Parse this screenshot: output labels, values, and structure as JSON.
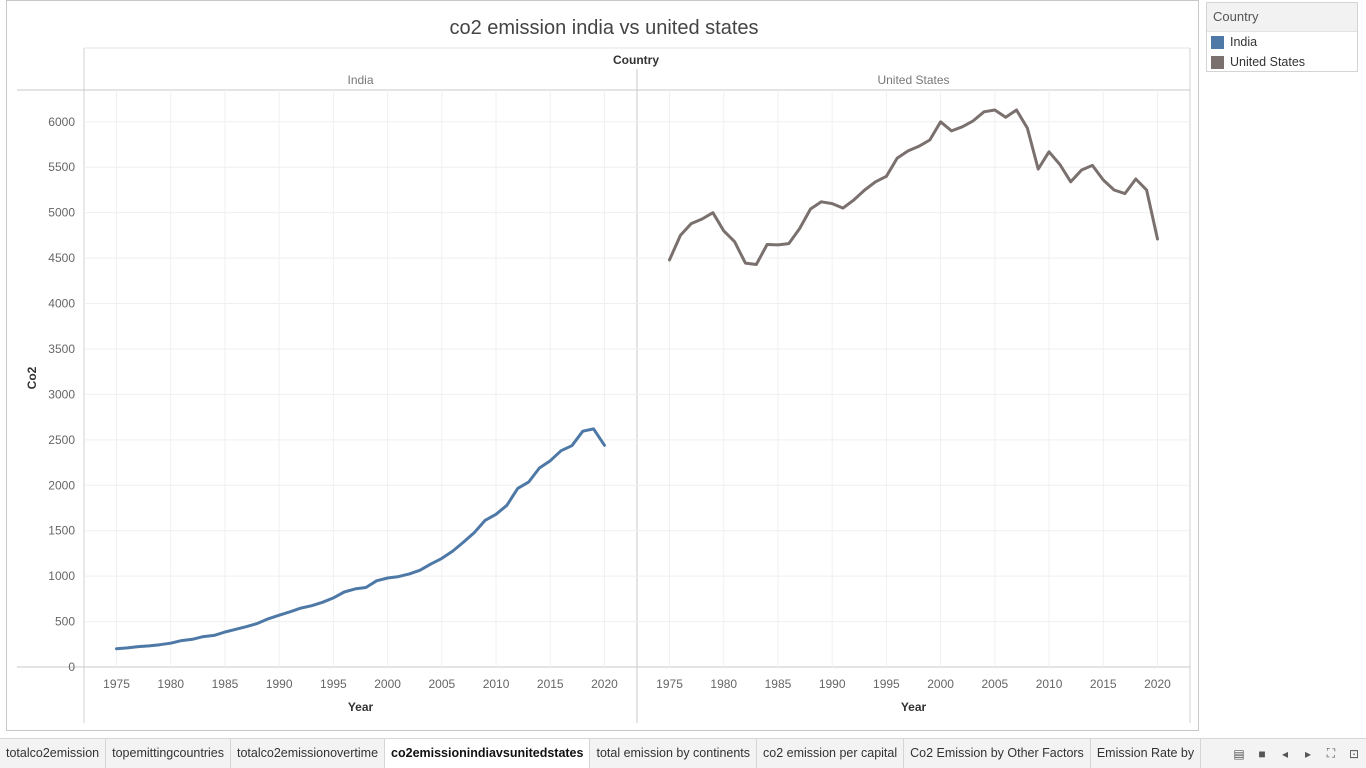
{
  "chart_data": {
    "type": "line",
    "title": "co2 emission india vs united states",
    "column_header": "Country",
    "ylabel": "Co2",
    "xlabel": "Year",
    "ylim": [
      0,
      6350
    ],
    "xlim": [
      1972,
      2023
    ],
    "y_ticks": [
      0,
      500,
      1000,
      1500,
      2000,
      2500,
      3000,
      3500,
      4000,
      4500,
      5000,
      5500,
      6000
    ],
    "x_ticks": [
      1975,
      1980,
      1985,
      1990,
      1995,
      2000,
      2005,
      2010,
      2015,
      2020
    ],
    "grid": true,
    "x": [
      1975,
      1976,
      1977,
      1978,
      1979,
      1980,
      1981,
      1982,
      1983,
      1984,
      1985,
      1986,
      1987,
      1988,
      1989,
      1990,
      1991,
      1992,
      1993,
      1994,
      1995,
      1996,
      1997,
      1998,
      1999,
      2000,
      2001,
      2002,
      2003,
      2004,
      2005,
      2006,
      2007,
      2008,
      2009,
      2010,
      2011,
      2012,
      2013,
      2014,
      2015,
      2016,
      2017,
      2018,
      2019,
      2020
    ],
    "panels": [
      {
        "name": "India",
        "color": "#4e79a7",
        "values": [
          200,
          210,
          225,
          232,
          245,
          262,
          290,
          305,
          335,
          348,
          385,
          415,
          445,
          480,
          530,
          570,
          608,
          648,
          675,
          712,
          760,
          825,
          860,
          875,
          950,
          980,
          995,
          1025,
          1065,
          1135,
          1195,
          1275,
          1375,
          1480,
          1615,
          1680,
          1780,
          1965,
          2035,
          2190,
          2270,
          2380,
          2435,
          2595,
          2620,
          2440
        ]
      },
      {
        "name": "United States",
        "color": "#7a706e",
        "values": [
          4480,
          4750,
          4880,
          4930,
          5000,
          4800,
          4680,
          4445,
          4430,
          4650,
          4645,
          4660,
          4825,
          5040,
          5120,
          5100,
          5050,
          5140,
          5250,
          5340,
          5400,
          5600,
          5680,
          5730,
          5800,
          6000,
          5900,
          5945,
          6010,
          6110,
          6130,
          6050,
          6130,
          5930,
          5480,
          5670,
          5530,
          5340,
          5470,
          5520,
          5360,
          5250,
          5210,
          5370,
          5250,
          4710
        ]
      }
    ]
  },
  "legend": {
    "title": "Country",
    "items": [
      {
        "label": "India",
        "color": "#4e79a7"
      },
      {
        "label": "United States",
        "color": "#7a706e"
      }
    ]
  },
  "tabs": [
    {
      "label": "totalco2emission",
      "active": false
    },
    {
      "label": "topemittingcountries",
      "active": false
    },
    {
      "label": "totalco2emissionovertime",
      "active": false
    },
    {
      "label": "co2emissionindiavsunitedstates",
      "active": true
    },
    {
      "label": "total emission by continents",
      "active": false
    },
    {
      "label": "co2 emission per capital",
      "active": false
    },
    {
      "label": "Co2 Emission by Other Factors",
      "active": false
    },
    {
      "label": "Emission Rate by",
      "active": false
    }
  ],
  "controls": [
    {
      "name": "show-filmstrip-icon",
      "glyph": "▤"
    },
    {
      "name": "show-tabs-icon",
      "glyph": "■"
    },
    {
      "name": "previous-sheet-icon",
      "glyph": "◂"
    },
    {
      "name": "next-sheet-icon",
      "glyph": "▸"
    },
    {
      "name": "fit-screen-icon",
      "glyph": "⛶"
    },
    {
      "name": "presentation-mode-icon",
      "glyph": "⊡"
    }
  ]
}
